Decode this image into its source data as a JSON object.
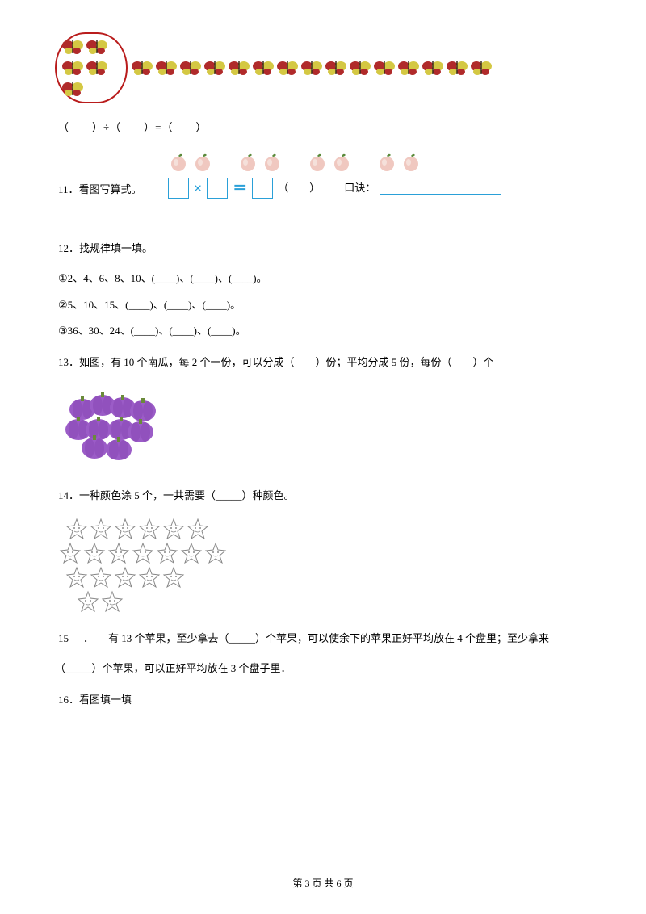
{
  "butterflies": {
    "circled_count": 5,
    "loose_counts": [
      4,
      4,
      4,
      3
    ],
    "body_color": "#d4c843",
    "wing_color": "#b02a2a"
  },
  "division_equation": "（　　）÷（　　）=（　　）",
  "peaches": {
    "groups": 4,
    "per_group": 2,
    "body_color": "#f0c8c0",
    "leaf_color": "#5a8a3a"
  },
  "formula": {
    "box_border": "#2aa0d8",
    "mult_sign": "×",
    "eq_sign": "＝",
    "paren": "（　　）",
    "mnemonic_label": "口诀：",
    "line_color": "#2aa0d8"
  },
  "q11": {
    "num": "11．",
    "text": "看图写算式。"
  },
  "q12": {
    "num": "12．",
    "title": "找规律填一填。",
    "lines": [
      "①2、4、6、8、10、(____)、(____)、(____)。",
      "②5、10、15、(____)、(____)、(____)。",
      "③36、30、24、(____)、(____)、(____)。"
    ]
  },
  "q13": {
    "num": "13．",
    "text": "如图，有 10 个南瓜，每 2 个一份，可以分成（　　）份；平均分成 5 份，每份（　　）个"
  },
  "pumpkins": {
    "count": 10,
    "color": "#9b5cc7",
    "stem_color": "#6a8a3a"
  },
  "q14": {
    "num": "14．",
    "text": "一种颜色涂 5 个，一共需要（_____）种颜色。"
  },
  "stars": {
    "rows": [
      6,
      7,
      5,
      2
    ],
    "stroke": "#888888",
    "fill": "#ffffff"
  },
  "q15": {
    "num": "15",
    "dot": "．",
    "text_a": "有 13 个苹果，至少拿去（_____）个苹果，可以使余下的苹果正好平均放在 4 个盘里；至少拿来",
    "text_b": "（_____）个苹果，可以正好平均放在 3 个盘子里．"
  },
  "q16": {
    "num": "16．",
    "text": "看图填一填"
  },
  "footer": "第 3 页 共 6 页",
  "colors": {
    "bg": "#ffffff",
    "text": "#000000"
  }
}
